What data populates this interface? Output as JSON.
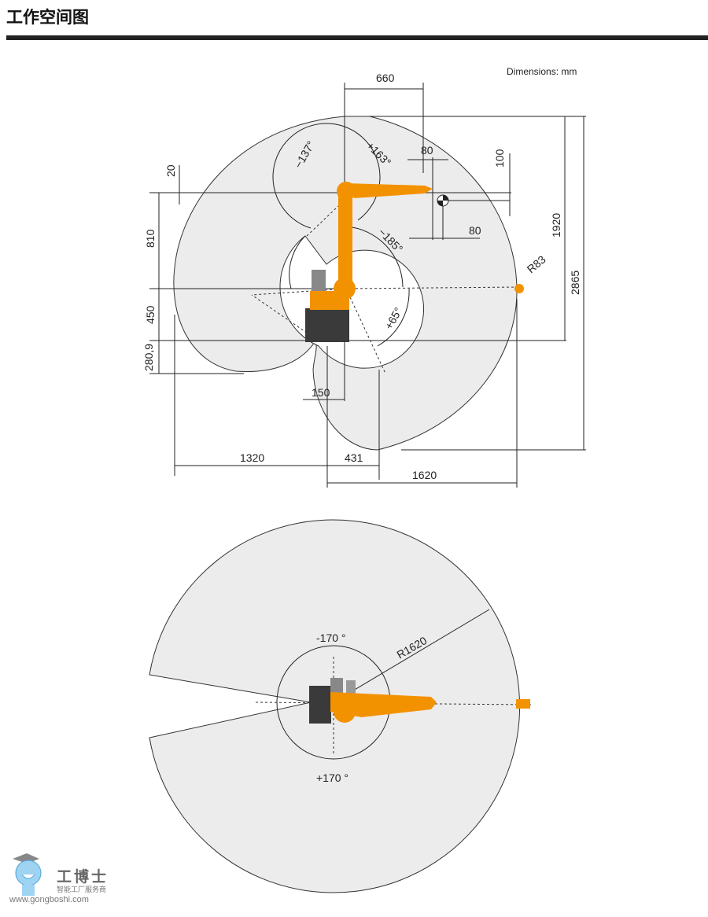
{
  "header": {
    "title": "工作空间图"
  },
  "side_view": {
    "units_note": "Dimensions: mm",
    "labels": {
      "d660": "660",
      "d80a": "80",
      "d100": "100",
      "d80b": "80",
      "d20": "20",
      "d810": "810",
      "d450": "450",
      "d2809": "280,9",
      "d150": "150",
      "d1320": "1320",
      "d431": "431",
      "d1620": "1620",
      "d1920": "1920",
      "d2865": "2865",
      "r83": "R83",
      "a137": "−137°",
      "a163": "+163°",
      "a185": "−185°",
      "a65": "+65°"
    }
  },
  "top_view": {
    "labels": {
      "neg170": "-170 °",
      "pos170": "+170 °",
      "r1620": "R1620"
    }
  },
  "colors": {
    "robot_orange": "#f39200",
    "envelope_fill": "#ececec",
    "base_dark": "#3a3a3a"
  },
  "logo": {
    "name": "工博士",
    "tagline": "智能工厂服务商",
    "url": "www.gongboshi.com"
  }
}
